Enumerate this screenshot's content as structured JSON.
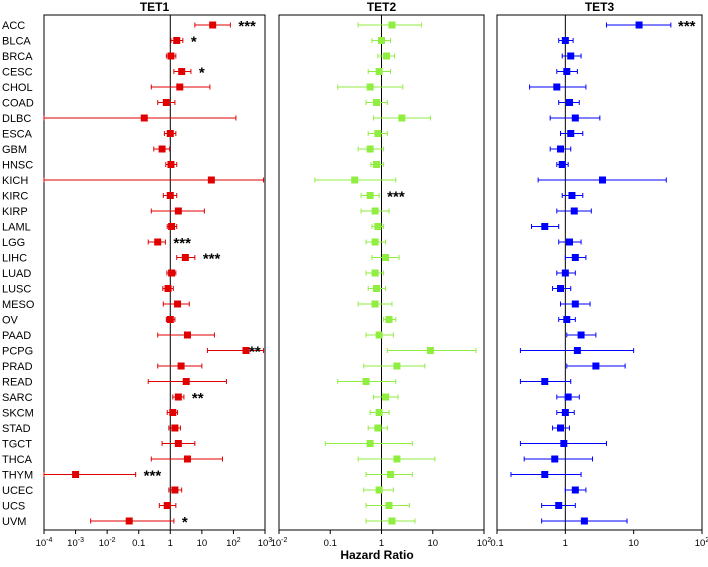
{
  "chart_data": {
    "type": "forest",
    "xlabel": "Hazard Ratio",
    "categories": [
      "ACC",
      "BLCA",
      "BRCA",
      "CESC",
      "CHOL",
      "COAD",
      "DLBC",
      "ESCA",
      "GBM",
      "HNSC",
      "KICH",
      "KIRC",
      "KIRP",
      "LAML",
      "LGG",
      "LIHC",
      "LUAD",
      "LUSC",
      "MESO",
      "OV",
      "PAAD",
      "PCPG",
      "PRAD",
      "READ",
      "SARC",
      "SKCM",
      "STAD",
      "TGCT",
      "THCA",
      "THYM",
      "UCEC",
      "UCS",
      "UVM"
    ],
    "panels": [
      {
        "title": "TET1",
        "color": "#e00000",
        "scale": "log",
        "xlim_exp": [
          -4,
          3
        ],
        "ticks": [
          "10^-4",
          "10^-3",
          "10^-2",
          "0.1",
          "1",
          "10",
          "10^2",
          "10^3"
        ],
        "hr": [
          22.0,
          1.6,
          1.05,
          2.3,
          2.0,
          0.75,
          0.15,
          1.0,
          0.55,
          1.05,
          20.0,
          1.0,
          1.8,
          1.1,
          0.4,
          3.0,
          1.1,
          0.85,
          1.7,
          1.0,
          3.5,
          250.0,
          2.2,
          3.2,
          1.8,
          1.2,
          1.4,
          1.8,
          3.5,
          0.001,
          1.4,
          0.8,
          0.05
        ],
        "lower": [
          6.0,
          1.05,
          0.75,
          1.3,
          0.25,
          0.4,
          0.0001,
          0.65,
          0.3,
          0.72,
          0.0001,
          0.6,
          0.25,
          0.8,
          0.2,
          1.6,
          0.78,
          0.58,
          0.6,
          0.75,
          0.4,
          15.0,
          0.4,
          0.2,
          1.2,
          0.8,
          0.9,
          0.55,
          0.25,
          0.0001,
          0.9,
          0.45,
          0.003
        ],
        "upper": [
          80.0,
          2.5,
          1.5,
          4.5,
          18.0,
          1.4,
          120.0,
          1.5,
          0.95,
          1.6,
          900.0,
          1.6,
          12.0,
          1.6,
          0.7,
          6.0,
          1.5,
          1.25,
          4.0,
          1.4,
          25.0,
          900.0,
          10.0,
          60.0,
          2.7,
          1.7,
          2.1,
          6.0,
          45.0,
          0.08,
          2.3,
          1.5,
          1.3
        ],
        "stars": [
          "***",
          "*",
          "",
          "*",
          "",
          "",
          "",
          "",
          "",
          "",
          "",
          "",
          "",
          "",
          "***",
          "***",
          "",
          "",
          "",
          "",
          "",
          "**",
          "",
          "",
          "**",
          "",
          "",
          "",
          "",
          "***",
          "",
          "",
          "*"
        ]
      },
      {
        "title": "TET2",
        "color": "#90ee40",
        "scale": "log",
        "xlim_exp": [
          -2,
          2
        ],
        "ticks": [
          "10^-2",
          "0.1",
          "1",
          "10",
          "10^2"
        ],
        "hr": [
          1.6,
          1.0,
          1.25,
          0.9,
          0.6,
          0.8,
          2.5,
          0.85,
          0.6,
          0.8,
          0.3,
          0.6,
          0.75,
          0.85,
          0.75,
          1.2,
          0.75,
          0.8,
          0.75,
          1.4,
          0.9,
          9.0,
          2.0,
          0.5,
          1.2,
          0.9,
          0.85,
          0.6,
          2.0,
          1.5,
          0.9,
          1.4,
          1.6
        ],
        "lower": [
          0.35,
          0.65,
          0.85,
          0.55,
          0.14,
          0.5,
          0.7,
          0.55,
          0.35,
          0.62,
          0.05,
          0.4,
          0.4,
          0.65,
          0.5,
          0.65,
          0.5,
          0.55,
          0.35,
          1.1,
          0.5,
          1.3,
          0.45,
          0.14,
          0.7,
          0.6,
          0.55,
          0.08,
          0.35,
          0.5,
          0.45,
          0.5,
          0.5
        ],
        "upper": [
          6.0,
          1.5,
          1.8,
          1.5,
          2.6,
          1.3,
          9.0,
          1.3,
          1.1,
          1.1,
          1.9,
          0.9,
          1.4,
          1.1,
          1.2,
          2.2,
          1.1,
          1.2,
          1.6,
          1.9,
          1.7,
          70.0,
          7.0,
          1.9,
          2.1,
          1.4,
          1.3,
          4.0,
          11.0,
          4.0,
          1.7,
          3.5,
          4.5
        ],
        "stars": [
          "",
          "",
          "",
          "",
          "",
          "",
          "",
          "",
          "",
          "",
          "",
          "***",
          "",
          "",
          "",
          "",
          "",
          "",
          "",
          "",
          "",
          "",
          "",
          "",
          "",
          "",
          "",
          "",
          "",
          "",
          "",
          "",
          ""
        ]
      },
      {
        "title": "TET3",
        "color": "#0000ff",
        "scale": "log",
        "xlim_exp": [
          -1,
          2
        ],
        "ticks": [
          "0.1",
          "1",
          "10",
          "10^2"
        ],
        "hr": [
          12.0,
          1.0,
          1.2,
          1.05,
          0.75,
          1.15,
          1.4,
          1.2,
          0.85,
          0.9,
          3.5,
          1.25,
          1.35,
          0.5,
          1.15,
          1.4,
          1.0,
          0.85,
          1.4,
          1.05,
          1.7,
          1.5,
          2.8,
          0.5,
          1.1,
          1.0,
          0.85,
          0.95,
          0.7,
          0.5,
          1.4,
          0.8,
          1.9
        ],
        "lower": [
          4.0,
          0.8,
          0.9,
          0.75,
          0.3,
          0.8,
          0.6,
          0.85,
          0.6,
          0.75,
          0.4,
          0.9,
          0.75,
          0.32,
          0.8,
          1.0,
          0.75,
          0.65,
          0.85,
          0.8,
          1.05,
          0.22,
          1.05,
          0.22,
          0.75,
          0.75,
          0.65,
          0.22,
          0.25,
          0.16,
          1.0,
          0.45,
          0.45
        ],
        "upper": [
          35.0,
          1.3,
          1.7,
          1.5,
          2.0,
          1.6,
          3.2,
          1.8,
          1.2,
          1.1,
          30.0,
          1.8,
          2.4,
          0.8,
          1.7,
          2.0,
          1.4,
          1.2,
          2.3,
          1.4,
          2.8,
          10.0,
          7.5,
          1.2,
          1.6,
          1.35,
          1.15,
          4.0,
          2.5,
          1.7,
          2.0,
          1.4,
          8.0
        ],
        "stars": [
          "***",
          "",
          "",
          "",
          "",
          "",
          "",
          "",
          "",
          "",
          "",
          "",
          "",
          "",
          "",
          "",
          "",
          "",
          "",
          "",
          "",
          "",
          "",
          "",
          "",
          "",
          "",
          "",
          "",
          "",
          "",
          "",
          ""
        ]
      }
    ]
  }
}
